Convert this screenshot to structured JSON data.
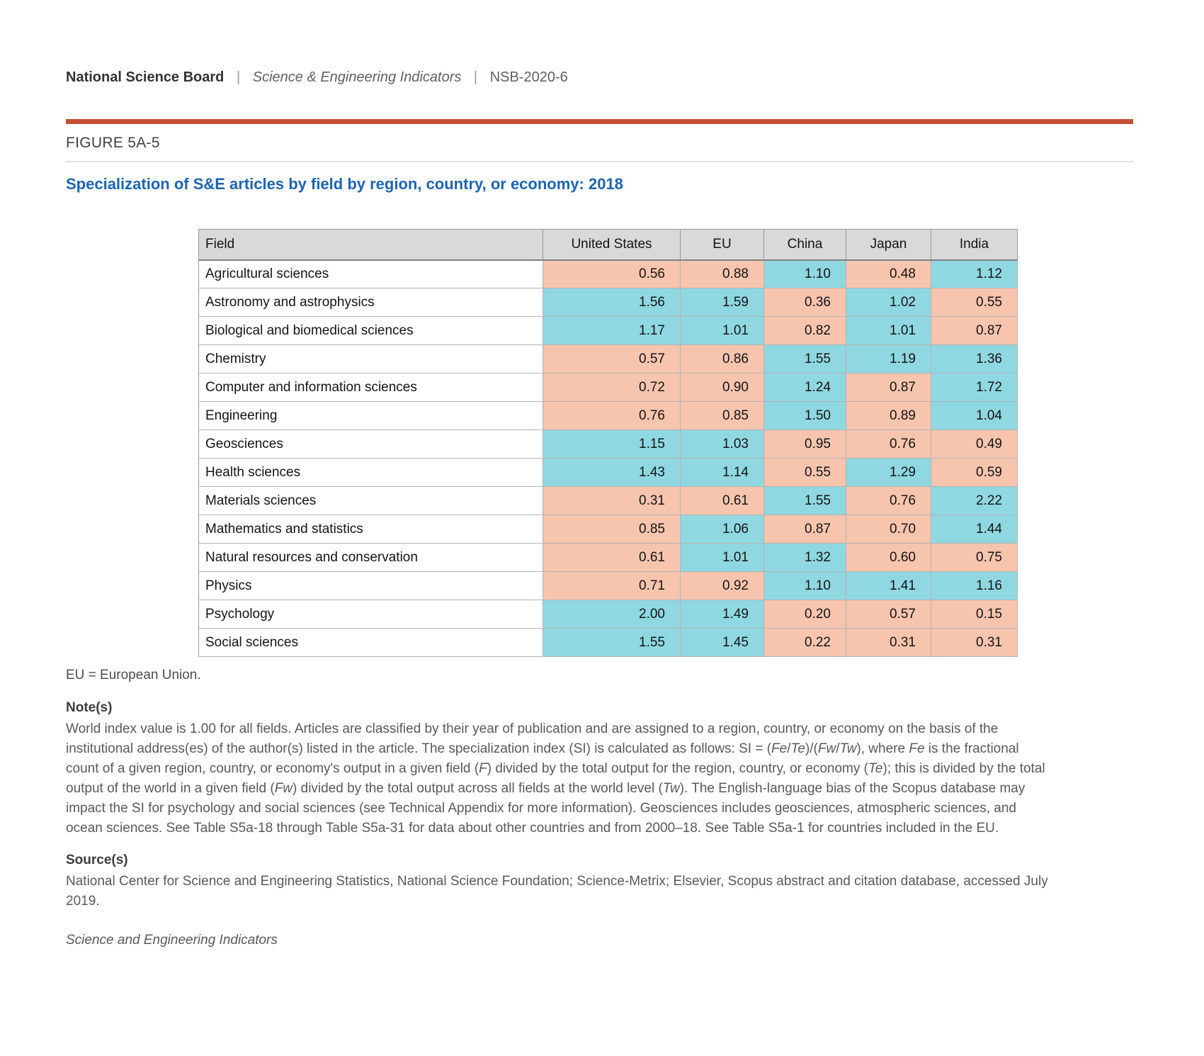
{
  "header": {
    "org": "National Science Board",
    "separator": "|",
    "publication": "Science & Engineering Indicators",
    "report_id": "NSB-2020-6"
  },
  "figure": {
    "label": "FIGURE 5A-5",
    "title": "Specialization of S&E articles by field by region, country, or economy: 2018"
  },
  "chart_data": {
    "type": "table",
    "columns": [
      "Field",
      "United States",
      "EU",
      "China",
      "Japan",
      "India"
    ],
    "rows": [
      {
        "field": "Agricultural sciences",
        "values": [
          "0.56",
          "0.88",
          "1.10",
          "0.48",
          "1.12"
        ]
      },
      {
        "field": "Astronomy and astrophysics",
        "values": [
          "1.56",
          "1.59",
          "0.36",
          "1.02",
          "0.55"
        ]
      },
      {
        "field": "Biological and biomedical sciences",
        "values": [
          "1.17",
          "1.01",
          "0.82",
          "1.01",
          "0.87"
        ]
      },
      {
        "field": "Chemistry",
        "values": [
          "0.57",
          "0.86",
          "1.55",
          "1.19",
          "1.36"
        ]
      },
      {
        "field": "Computer and information sciences",
        "values": [
          "0.72",
          "0.90",
          "1.24",
          "0.87",
          "1.72"
        ]
      },
      {
        "field": "Engineering",
        "values": [
          "0.76",
          "0.85",
          "1.50",
          "0.89",
          "1.04"
        ]
      },
      {
        "field": "Geosciences",
        "values": [
          "1.15",
          "1.03",
          "0.95",
          "0.76",
          "0.49"
        ]
      },
      {
        "field": "Health sciences",
        "values": [
          "1.43",
          "1.14",
          "0.55",
          "1.29",
          "0.59"
        ]
      },
      {
        "field": "Materials sciences",
        "values": [
          "0.31",
          "0.61",
          "1.55",
          "0.76",
          "2.22"
        ]
      },
      {
        "field": "Mathematics and statistics",
        "values": [
          "0.85",
          "1.06",
          "0.87",
          "0.70",
          "1.44"
        ]
      },
      {
        "field": "Natural resources and conservation",
        "values": [
          "0.61",
          "1.01",
          "1.32",
          "0.60",
          "0.75"
        ]
      },
      {
        "field": "Physics",
        "values": [
          "0.71",
          "0.92",
          "1.10",
          "1.41",
          "1.16"
        ]
      },
      {
        "field": "Psychology",
        "values": [
          "2.00",
          "1.49",
          "0.20",
          "0.57",
          "0.15"
        ]
      },
      {
        "field": "Social sciences",
        "values": [
          "1.55",
          "1.45",
          "0.22",
          "0.31",
          "0.31"
        ]
      }
    ],
    "colors": {
      "at_or_above_world_index": "#8FD8E1",
      "below_world_index": "#F7C4AE",
      "header_background": "#D9D9D9"
    },
    "color_rule": "cell is blue when value >= 1.00, salmon when value < 1.00"
  },
  "abbreviation_note": "EU = European Union.",
  "notes": {
    "heading": "Note(s)",
    "segments": [
      {
        "t": "World index value is 1.00 for all fields. Articles are classified by their year of publication and are assigned to a region, country, or economy on the basis of the institutional address(es) of the author(s) listed in the article. The specialization index (SI) is calculated as follows: SI = ("
      },
      {
        "t": "Fe",
        "i": true
      },
      {
        "t": "/"
      },
      {
        "t": "Te",
        "i": true
      },
      {
        "t": ")/("
      },
      {
        "t": "Fw",
        "i": true
      },
      {
        "t": "/"
      },
      {
        "t": "Tw",
        "i": true
      },
      {
        "t": "), where "
      },
      {
        "t": "Fe",
        "i": true
      },
      {
        "t": " is the fractional count of a given region, country, or economy's output in a given field ("
      },
      {
        "t": "F",
        "i": true
      },
      {
        "t": ") divided by the total output for the region, country, or economy ("
      },
      {
        "t": "Te",
        "i": true
      },
      {
        "t": "); this is divided by the total output of the world in a given field ("
      },
      {
        "t": "Fw",
        "i": true
      },
      {
        "t": ") divided by the total output across all fields at the world level ("
      },
      {
        "t": "Tw",
        "i": true
      },
      {
        "t": "). The English-language bias of the Scopus database may impact the SI for psychology and social sciences (see Technical Appendix for more information). Geosciences includes geosciences, atmospheric sciences, and ocean sciences. See Table S5a-18 through Table S5a-31 for data about other countries and from 2000–18. See Table S5a-1 for countries included in the EU."
      }
    ]
  },
  "source": {
    "heading": "Source(s)",
    "text": "National Center for Science and Engineering Statistics, National Science Foundation; Science-Metrix; Elsevier, Scopus abstract and citation database, accessed July 2019."
  },
  "footer": "Science and Engineering Indicators",
  "accent_colors": {
    "rule_red": "#C54F33",
    "title_blue": "#1E64B1"
  }
}
